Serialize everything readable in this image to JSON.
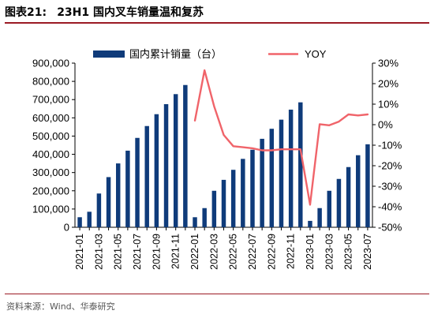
{
  "figure": {
    "label": "图表21:",
    "title": "23H1 国内叉车销量温和复苏"
  },
  "source": "资料来源：Wind、华泰研究",
  "colors": {
    "bar": "#0f3b7a",
    "line": "#f0646a",
    "accent": "#9b1a24"
  },
  "chart_data": {
    "type": "bar",
    "categories": [
      "2021-01",
      "2021-02",
      "2021-03",
      "2021-04",
      "2021-05",
      "2021-06",
      "2021-07",
      "2021-08",
      "2021-09",
      "2021-10",
      "2021-11",
      "2021-12",
      "2022-01",
      "2022-02",
      "2022-03",
      "2022-04",
      "2022-05",
      "2022-06",
      "2022-07",
      "2022-08",
      "2022-09",
      "2022-10",
      "2022-11",
      "2022-12",
      "2023-01",
      "2023-02",
      "2023-03",
      "2023-04",
      "2023-05",
      "2023-06",
      "2023-07"
    ],
    "x_tick_labels": [
      "2021-01",
      "2021-03",
      "2021-05",
      "2021-07",
      "2021-09",
      "2021-11",
      "2022-01",
      "2022-03",
      "2022-05",
      "2022-07",
      "2022-09",
      "2022-11",
      "2023-01",
      "2023-03",
      "2023-05",
      "2023-07"
    ],
    "series": [
      {
        "name": "国内累计销量（台）",
        "type": "bar",
        "axis": "left",
        "values": [
          55000,
          85000,
          185000,
          275000,
          350000,
          420000,
          490000,
          555000,
          620000,
          675000,
          730000,
          780000,
          55000,
          105000,
          200000,
          260000,
          315000,
          375000,
          425000,
          485000,
          540000,
          590000,
          645000,
          685000,
          35000,
          105000,
          200000,
          265000,
          330000,
          395000,
          455000
        ]
      },
      {
        "name": "YOY",
        "type": "line",
        "axis": "right",
        "values": [
          null,
          null,
          null,
          null,
          null,
          null,
          null,
          null,
          null,
          null,
          null,
          null,
          0.02,
          0.265,
          0.09,
          -0.05,
          -0.105,
          -0.11,
          -0.115,
          -0.125,
          -0.125,
          -0.12,
          -0.12,
          -0.12,
          -0.39,
          0.002,
          -0.003,
          0.015,
          0.05,
          0.045,
          0.05
        ]
      }
    ],
    "y_left": {
      "min": 0,
      "max": 900000,
      "step": 100000,
      "tick_labels": [
        "0",
        "100,000",
        "200,000",
        "300,000",
        "400,000",
        "500,000",
        "600,000",
        "700,000",
        "800,000",
        "900,000"
      ]
    },
    "y_right": {
      "min": -0.5,
      "max": 0.3,
      "step": 0.1,
      "tick_labels": [
        "-50%",
        "-40%",
        "-30%",
        "-20%",
        "-10%",
        "0%",
        "10%",
        "20%",
        "30%"
      ]
    },
    "legend_position": "top",
    "grid": false
  }
}
